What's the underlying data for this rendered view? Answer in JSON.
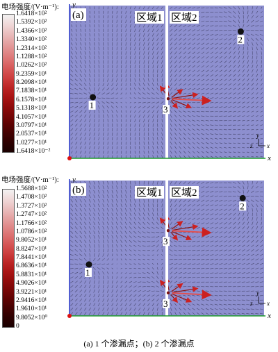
{
  "colorbar": {
    "title": "电场强度/(V·m⁻¹):",
    "colors": [
      "#f2f2f2",
      "#f0dada",
      "#eac0c0",
      "#e5a5a5",
      "#e08a8a",
      "#dc7070",
      "#d55555",
      "#cc3c3c",
      "#bb2424",
      "#a81414",
      "#900b0b",
      "#760606",
      "#5c0202",
      "#420101",
      "#2c0000",
      "#1a0000"
    ]
  },
  "panel_a": {
    "letter": "(a)",
    "region1": "区域1",
    "region2": "区域2",
    "colorbar_labels": [
      "1.6418×10²",
      "1.5392×10²",
      "1.4366×10²",
      "1.3340×10²",
      "1.2314×10²",
      "1.1288×10²",
      "1.0262×10²",
      "9.2359×10¹",
      "8.2098×10¹",
      "7.1838×10¹",
      "6.1578×10¹",
      "5.1318×10¹",
      "4.1057×10¹",
      "3.0797×10¹",
      "2.0537×10¹",
      "1.0277×10¹",
      "1.6418×10⁻²"
    ],
    "points": [
      {
        "label": "1",
        "x": 0.12,
        "y": 0.6,
        "type": "source"
      },
      {
        "label": "2",
        "x": 0.88,
        "y": 0.17,
        "type": "sink"
      },
      {
        "label": "3",
        "x": 0.5,
        "y": 0.61,
        "type": "leak"
      }
    ]
  },
  "panel_b": {
    "letter": "(b)",
    "region1": "区域1",
    "region2": "区域2",
    "colorbar_labels": [
      "1.5688×10²",
      "1.4708×10²",
      "1.3727×10²",
      "1.2747×10²",
      "1.1766×10²",
      "1.0786×10²",
      "9.8052×10¹",
      "8.8247×10¹",
      "7.8441×10¹",
      "6.8636×10¹",
      "5.8831×10¹",
      "4.9026×10¹",
      "3.9221×10¹",
      "2.9416×10¹",
      "1.9610×10¹",
      "9.8052×10⁰",
      "0"
    ],
    "points": [
      {
        "label": "1",
        "x": 0.1,
        "y": 0.62,
        "type": "source"
      },
      {
        "label": "2",
        "x": 0.89,
        "y": 0.13,
        "type": "sink"
      },
      {
        "label": "3",
        "x": 0.5,
        "y": 0.37,
        "type": "leak"
      },
      {
        "label": "3",
        "x": 0.5,
        "y": 0.83,
        "type": "leak"
      }
    ]
  },
  "axes": {
    "x": "x",
    "y": "y",
    "z": "z"
  },
  "caption": "(a) 1 个渗漏点；(b) 2 个渗漏点"
}
